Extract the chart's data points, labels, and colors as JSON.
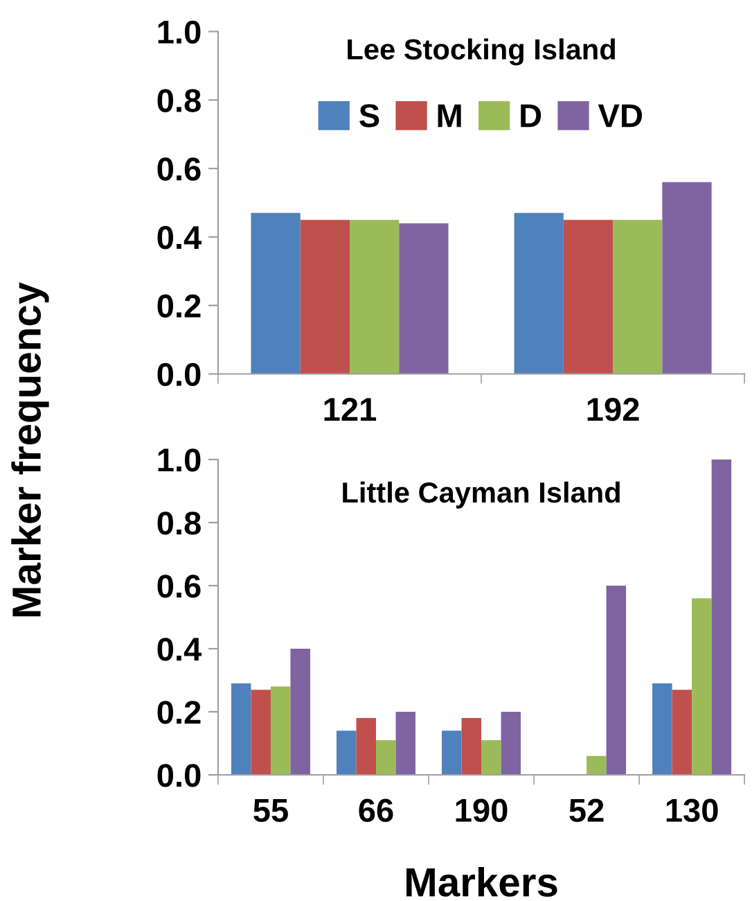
{
  "chart_data": [
    {
      "type": "bar",
      "title": "Lee Stocking Island",
      "ylabel": "Marker frequency",
      "categories": [
        "121",
        "192"
      ],
      "ylim": [
        0,
        1.0
      ],
      "yticks": [
        {
          "value": 0,
          "label": "0.0"
        },
        {
          "value": 0.2,
          "label": "0.2"
        },
        {
          "value": 0.4,
          "label": "0.4"
        },
        {
          "value": 0.6,
          "label": "0.6"
        },
        {
          "value": 0.8,
          "label": "0.8"
        },
        {
          "value": 1.0,
          "label": "1.0"
        }
      ],
      "grid": false,
      "legend": "top",
      "series": [
        {
          "name": "S",
          "color": "#4f81bd",
          "values": [
            0.47,
            0.47
          ]
        },
        {
          "name": "M",
          "color": "#c0504d",
          "values": [
            0.45,
            0.45
          ]
        },
        {
          "name": "D",
          "color": "#9bbb59",
          "values": [
            0.45,
            0.45
          ]
        },
        {
          "name": "VD",
          "color": "#8064a2",
          "values": [
            0.44,
            0.56
          ]
        }
      ]
    },
    {
      "type": "bar",
      "title": "Little Cayman Island",
      "xlabel": "Markers",
      "categories": [
        "55",
        "66",
        "190",
        "52",
        "130"
      ],
      "ylim": [
        0,
        1.0
      ],
      "yticks": [
        {
          "value": 0,
          "label": "0.0"
        },
        {
          "value": 0.2,
          "label": "0.2"
        },
        {
          "value": 0.4,
          "label": "0.4"
        },
        {
          "value": 0.6,
          "label": "0.6"
        },
        {
          "value": 0.8,
          "label": "0.8"
        },
        {
          "value": 1.0,
          "label": "1.0"
        }
      ],
      "grid": false,
      "legend": false,
      "series": [
        {
          "color": "#4f81bd",
          "values": [
            0.29,
            0.14,
            0.14,
            0,
            0.29
          ]
        },
        {
          "color": "#c0504d",
          "values": [
            0.27,
            0.18,
            0.18,
            0,
            0.27
          ]
        },
        {
          "color": "#9bbb59",
          "values": [
            0.28,
            0.11,
            0.11,
            0.06,
            0.56
          ]
        },
        {
          "color": "#8064a2",
          "values": [
            0.4,
            0.2,
            0.2,
            0.6,
            1.0
          ]
        }
      ]
    }
  ]
}
